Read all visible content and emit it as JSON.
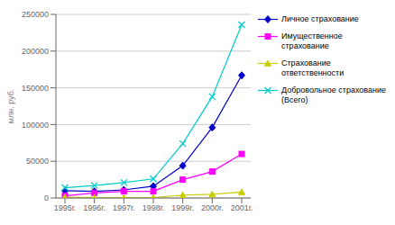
{
  "chart_data": {
    "type": "line",
    "categories": [
      "1995г.",
      "1996г.",
      "1997г.",
      "1998г.",
      "1999г.",
      "2000г.",
      "2001г."
    ],
    "series": [
      {
        "name": "Личное страхование",
        "color": "#0000CC",
        "marker": "diamond",
        "values": [
          10000,
          9000,
          11000,
          16000,
          44000,
          96000,
          167000
        ]
      },
      {
        "name": "Имущественное\nстрахование",
        "color": "#FF00FF",
        "marker": "square",
        "values": [
          3000,
          7000,
          9000,
          9000,
          25000,
          36000,
          60000
        ]
      },
      {
        "name": "Страхование\nответственности",
        "color": "#CCCC00",
        "marker": "triangle",
        "values": [
          1000,
          500,
          500,
          500,
          4000,
          5000,
          8000
        ]
      },
      {
        "name": "Добровольное страхование\n(Всего)",
        "color": "#00CCCC",
        "marker": "x",
        "values": [
          14000,
          17000,
          21000,
          26000,
          74000,
          138000,
          236000
        ]
      }
    ],
    "ylabel": "млн. руб.",
    "ylim": [
      0,
      250000
    ],
    "yticks": [
      0,
      50000,
      100000,
      150000,
      200000,
      250000
    ],
    "grid": true,
    "legend": "right"
  }
}
